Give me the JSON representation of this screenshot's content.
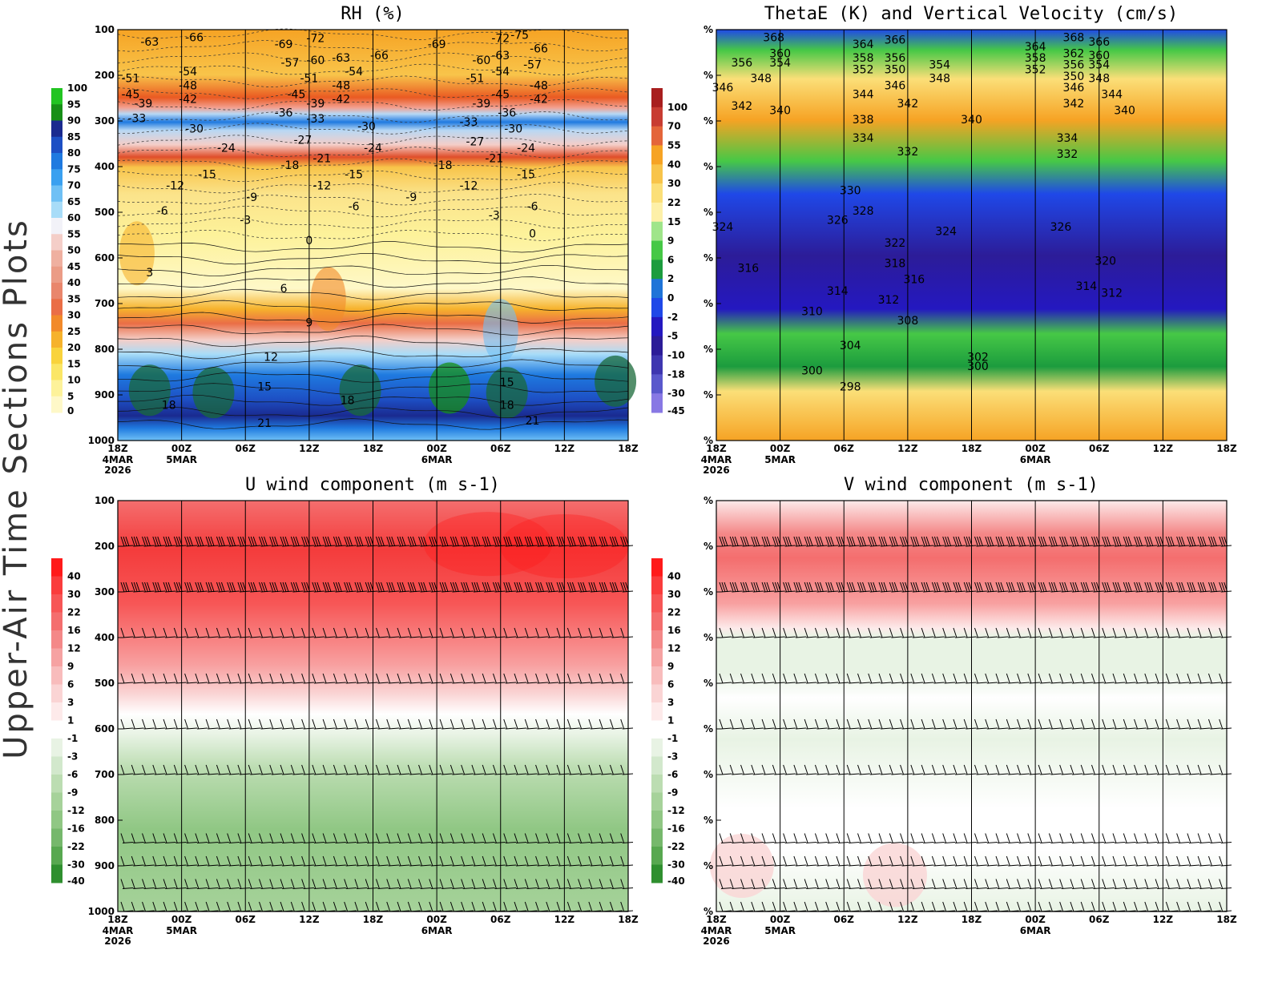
{
  "side_label": "Upper-Air Time Sections Plots",
  "time_ticks": [
    "18Z",
    "00Z",
    "06Z",
    "12Z",
    "18Z",
    "00Z",
    "06Z",
    "12Z",
    "18Z"
  ],
  "date_labels": [
    {
      "tick_index": 0,
      "lines": [
        "4MAR",
        "2026"
      ]
    },
    {
      "tick_index": 1,
      "lines": [
        "5MAR"
      ]
    },
    {
      "tick_index": 5,
      "lines": [
        "6MAR"
      ]
    }
  ],
  "pressure_levels": [
    100,
    200,
    300,
    400,
    500,
    600,
    700,
    800,
    900,
    1000
  ],
  "missing_level_label": "%",
  "chart_data": [
    {
      "id": "rh",
      "type": "heatmap",
      "title": "RH (%)",
      "y_axis": "pressure (hPa), 100 top to 1000 bottom",
      "colorbar": [
        "100",
        "95",
        "90",
        "85",
        "80",
        "75",
        "70",
        "65",
        "60",
        "55",
        "50",
        "45",
        "40",
        "35",
        "30",
        "25",
        "20",
        "15",
        "10",
        "5",
        "0"
      ],
      "palette": [
        "#22c422",
        "#178f17",
        "#1a2a8f",
        "#1d4fc4",
        "#1f7ae0",
        "#3aa0f0",
        "#6fc0f5",
        "#a8dcf8",
        "#f2f2f8",
        "#f4cec8",
        "#efb0a0",
        "#eb9c86",
        "#e9866c",
        "#ea6e46",
        "#f28a2a",
        "#f6b22c",
        "#f9d33c",
        "#fbe666",
        "#fdf29a",
        "#fef8c8"
      ],
      "contour_labels": [
        {
          "t": 0.5,
          "p": 130,
          "v": "-63"
        },
        {
          "t": 1.2,
          "p": 120,
          "v": "-66"
        },
        {
          "t": 2.6,
          "p": 135,
          "v": "-69"
        },
        {
          "t": 3.1,
          "p": 122,
          "v": "-72"
        },
        {
          "t": 4.1,
          "p": 160,
          "v": "-66"
        },
        {
          "t": 5.0,
          "p": 135,
          "v": "-69"
        },
        {
          "t": 6.0,
          "p": 122,
          "v": "-72"
        },
        {
          "t": 6.3,
          "p": 115,
          "v": "-75"
        },
        {
          "t": 6.6,
          "p": 145,
          "v": "-66"
        },
        {
          "t": 2.7,
          "p": 175,
          "v": "-57"
        },
        {
          "t": 3.1,
          "p": 170,
          "v": "-60"
        },
        {
          "t": 3.5,
          "p": 165,
          "v": "-63"
        },
        {
          "t": 5.7,
          "p": 170,
          "v": "-60"
        },
        {
          "t": 6.0,
          "p": 160,
          "v": "-63"
        },
        {
          "t": 6.5,
          "p": 180,
          "v": "-57"
        },
        {
          "t": 0.2,
          "p": 210,
          "v": "-51"
        },
        {
          "t": 1.1,
          "p": 195,
          "v": "-54"
        },
        {
          "t": 1.1,
          "p": 225,
          "v": "-48"
        },
        {
          "t": 3.0,
          "p": 210,
          "v": "-51"
        },
        {
          "t": 3.7,
          "p": 195,
          "v": "-54"
        },
        {
          "t": 3.5,
          "p": 225,
          "v": "-48"
        },
        {
          "t": 5.6,
          "p": 210,
          "v": "-51"
        },
        {
          "t": 6.0,
          "p": 195,
          "v": "-54"
        },
        {
          "t": 6.6,
          "p": 225,
          "v": "-48"
        },
        {
          "t": 0.2,
          "p": 245,
          "v": "-45"
        },
        {
          "t": 0.4,
          "p": 265,
          "v": "-39"
        },
        {
          "t": 1.1,
          "p": 255,
          "v": "-42"
        },
        {
          "t": 2.8,
          "p": 245,
          "v": "-45"
        },
        {
          "t": 3.1,
          "p": 265,
          "v": "-39"
        },
        {
          "t": 3.5,
          "p": 255,
          "v": "-42"
        },
        {
          "t": 6.0,
          "p": 245,
          "v": "-45"
        },
        {
          "t": 5.7,
          "p": 265,
          "v": "-39"
        },
        {
          "t": 6.6,
          "p": 255,
          "v": "-42"
        },
        {
          "t": 0.3,
          "p": 297,
          "v": "-33"
        },
        {
          "t": 1.2,
          "p": 320,
          "v": "-30"
        },
        {
          "t": 2.6,
          "p": 285,
          "v": "-36"
        },
        {
          "t": 3.1,
          "p": 298,
          "v": "-33"
        },
        {
          "t": 3.9,
          "p": 315,
          "v": "-30"
        },
        {
          "t": 5.5,
          "p": 305,
          "v": "-33"
        },
        {
          "t": 6.1,
          "p": 285,
          "v": "-36"
        },
        {
          "t": 6.2,
          "p": 320,
          "v": "-30"
        },
        {
          "t": 1.7,
          "p": 362,
          "v": "-24"
        },
        {
          "t": 2.9,
          "p": 345,
          "v": "-27"
        },
        {
          "t": 4.0,
          "p": 362,
          "v": "-24"
        },
        {
          "t": 5.6,
          "p": 348,
          "v": "-27"
        },
        {
          "t": 6.4,
          "p": 362,
          "v": "-24"
        },
        {
          "t": 3.2,
          "p": 385,
          "v": "-21"
        },
        {
          "t": 2.7,
          "p": 400,
          "v": "-18"
        },
        {
          "t": 5.1,
          "p": 400,
          "v": "-18"
        },
        {
          "t": 5.9,
          "p": 385,
          "v": "-21"
        },
        {
          "t": 1.4,
          "p": 420,
          "v": "-15"
        },
        {
          "t": 3.7,
          "p": 420,
          "v": "-15"
        },
        {
          "t": 6.4,
          "p": 420,
          "v": "-15"
        },
        {
          "t": 0.9,
          "p": 445,
          "v": "-12"
        },
        {
          "t": 3.2,
          "p": 445,
          "v": "-12"
        },
        {
          "t": 5.5,
          "p": 445,
          "v": "-12"
        },
        {
          "t": 2.1,
          "p": 470,
          "v": "-9"
        },
        {
          "t": 4.6,
          "p": 470,
          "v": "-9"
        },
        {
          "t": 0.7,
          "p": 500,
          "v": "-6"
        },
        {
          "t": 3.7,
          "p": 490,
          "v": "-6"
        },
        {
          "t": 6.5,
          "p": 490,
          "v": "-6"
        },
        {
          "t": 2.0,
          "p": 520,
          "v": "-3"
        },
        {
          "t": 5.9,
          "p": 510,
          "v": "-3"
        },
        {
          "t": 3.0,
          "p": 565,
          "v": "0"
        },
        {
          "t": 6.5,
          "p": 550,
          "v": "0"
        },
        {
          "t": 0.5,
          "p": 635,
          "v": "3"
        },
        {
          "t": 2.6,
          "p": 670,
          "v": "6"
        },
        {
          "t": 3.0,
          "p": 745,
          "v": "9"
        },
        {
          "t": 2.4,
          "p": 820,
          "v": "12"
        },
        {
          "t": 2.3,
          "p": 885,
          "v": "15"
        },
        {
          "t": 6.1,
          "p": 875,
          "v": "15"
        },
        {
          "t": 0.8,
          "p": 925,
          "v": "18"
        },
        {
          "t": 3.6,
          "p": 915,
          "v": "18"
        },
        {
          "t": 6.1,
          "p": 925,
          "v": "18"
        },
        {
          "t": 2.3,
          "p": 965,
          "v": "21"
        },
        {
          "t": 6.5,
          "p": 960,
          "v": "21"
        }
      ]
    },
    {
      "id": "thetae",
      "type": "heatmap",
      "title": "ThetaE (K) and Vertical Velocity (cm/s)",
      "y_axis": "pressure levels (tick labels shown as %)",
      "colorbar": [
        "100",
        "70",
        "55",
        "40",
        "30",
        "22",
        "15",
        "9",
        "6",
        "2",
        "0",
        "-2",
        "-5",
        "-10",
        "-18",
        "-30",
        "-45"
      ],
      "palette": [
        "#a81e1e",
        "#c83c32",
        "#e4653a",
        "#f6a324",
        "#f8c44a",
        "#fbdf78",
        "#fdf0a8",
        "#9fe58a",
        "#46c846",
        "#1c9c3e",
        "#1f74d8",
        "#1f48e8",
        "#2418c0",
        "#2c1c98",
        "#3e36b0",
        "#5a58cc",
        "#8878e4"
      ],
      "contour_labels": [
        {
          "t": 0.9,
          "p": 120,
          "v": "368"
        },
        {
          "t": 1.0,
          "p": 155,
          "v": "360"
        },
        {
          "t": 1.0,
          "p": 175,
          "v": "354"
        },
        {
          "t": 0.4,
          "p": 175,
          "v": "356"
        },
        {
          "t": 0.7,
          "p": 210,
          "v": "348"
        },
        {
          "t": 0.1,
          "p": 230,
          "v": "346"
        },
        {
          "t": 0.4,
          "p": 270,
          "v": "342"
        },
        {
          "t": 1.0,
          "p": 280,
          "v": "340"
        },
        {
          "t": 2.3,
          "p": 135,
          "v": "364"
        },
        {
          "t": 2.8,
          "p": 125,
          "v": "366"
        },
        {
          "t": 2.3,
          "p": 165,
          "v": "358"
        },
        {
          "t": 2.8,
          "p": 165,
          "v": "356"
        },
        {
          "t": 2.3,
          "p": 190,
          "v": "352"
        },
        {
          "t": 2.8,
          "p": 190,
          "v": "350"
        },
        {
          "t": 3.5,
          "p": 180,
          "v": "354"
        },
        {
          "t": 3.5,
          "p": 210,
          "v": "348"
        },
        {
          "t": 2.8,
          "p": 225,
          "v": "346"
        },
        {
          "t": 2.3,
          "p": 245,
          "v": "344"
        },
        {
          "t": 3.0,
          "p": 265,
          "v": "342"
        },
        {
          "t": 2.3,
          "p": 300,
          "v": "338"
        },
        {
          "t": 4.0,
          "p": 300,
          "v": "340"
        },
        {
          "t": 5.0,
          "p": 140,
          "v": "364"
        },
        {
          "t": 5.6,
          "p": 120,
          "v": "368"
        },
        {
          "t": 5.0,
          "p": 165,
          "v": "358"
        },
        {
          "t": 5.0,
          "p": 190,
          "v": "352"
        },
        {
          "t": 5.6,
          "p": 155,
          "v": "362"
        },
        {
          "t": 6.0,
          "p": 130,
          "v": "366"
        },
        {
          "t": 6.0,
          "p": 160,
          "v": "360"
        },
        {
          "t": 6.0,
          "p": 180,
          "v": "354"
        },
        {
          "t": 5.6,
          "p": 180,
          "v": "356"
        },
        {
          "t": 5.6,
          "p": 205,
          "v": "350"
        },
        {
          "t": 6.0,
          "p": 210,
          "v": "348"
        },
        {
          "t": 5.6,
          "p": 230,
          "v": "346"
        },
        {
          "t": 6.2,
          "p": 245,
          "v": "344"
        },
        {
          "t": 5.6,
          "p": 265,
          "v": "342"
        },
        {
          "t": 6.4,
          "p": 280,
          "v": "340"
        },
        {
          "t": 2.3,
          "p": 340,
          "v": "334"
        },
        {
          "t": 3.0,
          "p": 370,
          "v": "332"
        },
        {
          "t": 5.5,
          "p": 340,
          "v": "334"
        },
        {
          "t": 5.5,
          "p": 375,
          "v": "332"
        },
        {
          "t": 2.1,
          "p": 455,
          "v": "330"
        },
        {
          "t": 2.3,
          "p": 500,
          "v": "328"
        },
        {
          "t": 1.9,
          "p": 520,
          "v": "326"
        },
        {
          "t": 0.1,
          "p": 535,
          "v": "324"
        },
        {
          "t": 3.6,
          "p": 545,
          "v": "324"
        },
        {
          "t": 5.4,
          "p": 535,
          "v": "326"
        },
        {
          "t": 2.8,
          "p": 570,
          "v": "322"
        },
        {
          "t": 2.8,
          "p": 615,
          "v": "318"
        },
        {
          "t": 0.5,
          "p": 625,
          "v": "316"
        },
        {
          "t": 3.1,
          "p": 650,
          "v": "316"
        },
        {
          "t": 6.1,
          "p": 610,
          "v": "320"
        },
        {
          "t": 1.9,
          "p": 675,
          "v": "314"
        },
        {
          "t": 5.8,
          "p": 665,
          "v": "314"
        },
        {
          "t": 2.7,
          "p": 695,
          "v": "312"
        },
        {
          "t": 6.2,
          "p": 680,
          "v": "312"
        },
        {
          "t": 1.5,
          "p": 720,
          "v": "310"
        },
        {
          "t": 3.0,
          "p": 740,
          "v": "308"
        },
        {
          "t": 2.1,
          "p": 795,
          "v": "304"
        },
        {
          "t": 4.1,
          "p": 820,
          "v": "302"
        },
        {
          "t": 1.5,
          "p": 850,
          "v": "300"
        },
        {
          "t": 4.1,
          "p": 840,
          "v": "300"
        },
        {
          "t": 2.1,
          "p": 885,
          "v": "298"
        }
      ]
    },
    {
      "id": "u",
      "type": "heatmap",
      "title": "U wind component (m s-1)",
      "y_axis": "pressure (hPa), 100 top to 1000 bottom",
      "colorbar": [
        "40",
        "30",
        "22",
        "16",
        "12",
        "9",
        "6",
        "3",
        "1",
        "-1",
        "-3",
        "-6",
        "-9",
        "-12",
        "-16",
        "-22",
        "-30",
        "-40"
      ],
      "palette": [
        "#ff1a1a",
        "#fa3c3c",
        "#f75656",
        "#f46e6e",
        "#f48888",
        "#f6a2a2",
        "#f8bcbc",
        "#fad4d4",
        "#fdeaea",
        "#ffffff",
        "#e8f3e4",
        "#d2e8cc",
        "#bcddb2",
        "#a6d29a",
        "#90c784",
        "#76b86c",
        "#58a850",
        "#2f8f2f"
      ],
      "barb_levels": [
        200,
        300,
        400,
        500,
        600,
        700,
        850,
        900,
        950,
        1000
      ]
    },
    {
      "id": "v",
      "type": "heatmap",
      "title": "V wind component (m s-1)",
      "y_axis": "pressure levels (tick labels shown as %)",
      "colorbar": [
        "40",
        "30",
        "22",
        "16",
        "12",
        "9",
        "6",
        "3",
        "1",
        "-1",
        "-3",
        "-6",
        "-9",
        "-12",
        "-16",
        "-22",
        "-30",
        "-40"
      ],
      "palette": [
        "#ff1a1a",
        "#fa3c3c",
        "#f75656",
        "#f46e6e",
        "#f48888",
        "#f6a2a2",
        "#f8bcbc",
        "#fad4d4",
        "#fdeaea",
        "#ffffff",
        "#e8f3e4",
        "#d2e8cc",
        "#bcddb2",
        "#a6d29a",
        "#90c784",
        "#76b86c",
        "#58a850",
        "#2f8f2f"
      ],
      "barb_levels": [
        200,
        300,
        400,
        500,
        600,
        700,
        850,
        900,
        950,
        1000
      ]
    }
  ]
}
